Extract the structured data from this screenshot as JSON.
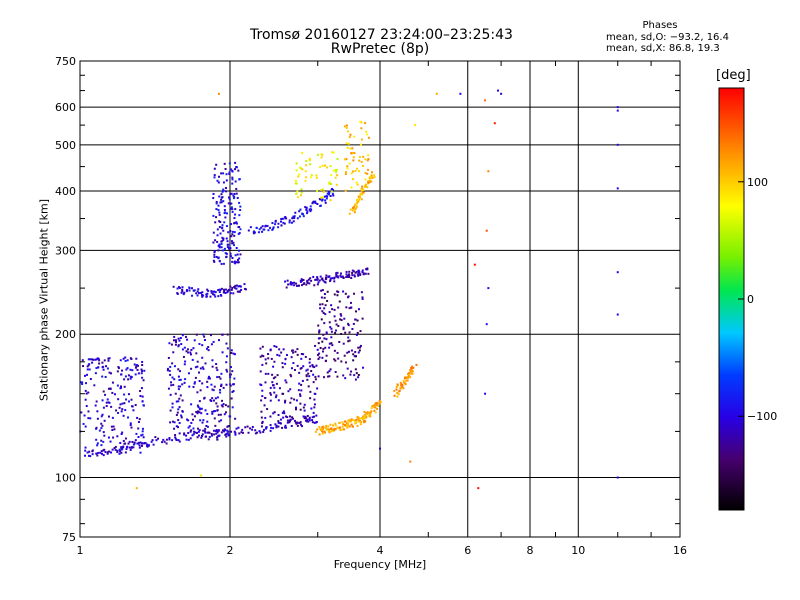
{
  "title": "Tromsø 20160127 23:24:00–23:25:43",
  "subtitle": "RwPretec (8p)",
  "phases": {
    "heading": "Phases",
    "o_stats": "mean, sd,O: −93.2, 16.4",
    "x_stats": "mean, sd,X:  86.8, 19.3"
  },
  "colorbar": {
    "unit_label": "[deg]",
    "range": [
      -180,
      180
    ],
    "ticks": [
      100,
      0,
      -100
    ],
    "tick_labels": [
      "100",
      "0",
      "−100"
    ]
  },
  "chart_data": {
    "type": "scatter",
    "xlabel": "Frequency [MHz]",
    "ylabel": "Stationary phase Virtual Height [km]",
    "x_scale": "log",
    "y_scale": "log",
    "xlim": [
      1,
      16
    ],
    "ylim": [
      75,
      750
    ],
    "grid": true,
    "xticks": [
      1,
      2,
      4,
      6,
      8,
      10,
      16
    ],
    "xtick_labels": [
      "1",
      "2",
      "4",
      "6",
      "8",
      "10",
      "16"
    ],
    "yticks": [
      75,
      100,
      200,
      300,
      400,
      500,
      600,
      750
    ],
    "ytick_labels": [
      "75",
      "100",
      "200",
      "300",
      "400",
      "500",
      "600",
      "750"
    ],
    "value_label": "phase [deg]",
    "series": [
      {
        "traces": [
          {
            "x": [
              1.02,
              1.1,
              1.2,
              1.3,
              1.4,
              1.55,
              1.7,
              1.85,
              2.0,
              2.2,
              2.4,
              2.6,
              2.8,
              3.0
            ],
            "y": [
              112,
              113,
              115,
              117,
              119,
              121,
              123,
              124,
              125,
              126,
              127,
              129,
              131,
              133
            ],
            "phase": -110
          },
          {
            "x": [
              1.55,
              1.65,
              1.75,
              1.85,
              1.95,
              2.05,
              2.15
            ],
            "y": [
              248,
              246,
              244,
              244,
              246,
              249,
              252
            ],
            "phase": -105
          },
          {
            "x": [
              2.6,
              2.75,
              2.9,
              3.05,
              3.2,
              3.35,
              3.5,
              3.65,
              3.8
            ],
            "y": [
              255,
              256,
              258,
              260,
              263,
              265,
              267,
              268,
              270
            ],
            "phase": -115
          },
          {
            "x": [
              2.2,
              2.35,
              2.5,
              2.65,
              2.8,
              2.95,
              3.1,
              3.25
            ],
            "y": [
              330,
              335,
              342,
              350,
              360,
              372,
              385,
              400
            ],
            "phase": -95
          },
          {
            "x": [
              3.0,
              3.1,
              3.2,
              3.3,
              3.4,
              3.5,
              3.6,
              3.7,
              3.8,
              3.9,
              4.0
            ],
            "y": [
              125,
              126,
              127,
              128,
              129,
              130,
              131,
              133,
              136,
              140,
              145
            ],
            "phase": 115
          },
          {
            "x": [
              3.5,
              3.6,
              3.7,
              3.8,
              3.9
            ],
            "y": [
              360,
              380,
              400,
              420,
              440
            ],
            "phase": 110
          },
          {
            "x": [
              4.3,
              4.4,
              4.5,
              4.6,
              4.7
            ],
            "y": [
              150,
              155,
              160,
              165,
              170
            ],
            "phase": 120
          }
        ]
      },
      {
        "clusters": [
          {
            "x": [
              1.0,
              1.35
            ],
            "y": [
              112,
              180
            ],
            "phase": -105,
            "n": 220
          },
          {
            "x": [
              1.5,
              2.05
            ],
            "y": [
              120,
              200
            ],
            "phase": -110,
            "n": 260
          },
          {
            "x": [
              1.85,
              2.1
            ],
            "y": [
              280,
              460
            ],
            "phase": -100,
            "n": 180
          },
          {
            "x": [
              2.3,
              3.0
            ],
            "y": [
              130,
              190
            ],
            "phase": -120,
            "n": 170
          },
          {
            "x": [
              3.0,
              3.7
            ],
            "y": [
              160,
              250
            ],
            "phase": -130,
            "n": 150
          },
          {
            "x": [
              2.7,
              3.3
            ],
            "y": [
              380,
              490
            ],
            "phase": 80,
            "n": 60
          },
          {
            "x": [
              3.4,
              3.8
            ],
            "y": [
              400,
              560
            ],
            "phase": 105,
            "n": 60
          }
        ]
      },
      {
        "points": [
          {
            "x": 1.9,
            "y": 640,
            "phase": 130
          },
          {
            "x": 1.75,
            "y": 101,
            "phase": 95
          },
          {
            "x": 1.3,
            "y": 95,
            "phase": 110
          },
          {
            "x": 5.2,
            "y": 640,
            "phase": 115
          },
          {
            "x": 5.8,
            "y": 640,
            "phase": -100
          },
          {
            "x": 6.5,
            "y": 620,
            "phase": 140
          },
          {
            "x": 6.9,
            "y": 650,
            "phase": -100
          },
          {
            "x": 7.0,
            "y": 640,
            "phase": -110
          },
          {
            "x": 6.8,
            "y": 555,
            "phase": 170
          },
          {
            "x": 6.6,
            "y": 440,
            "phase": 130
          },
          {
            "x": 6.2,
            "y": 280,
            "phase": 175
          },
          {
            "x": 6.6,
            "y": 250,
            "phase": -100
          },
          {
            "x": 6.3,
            "y": 95,
            "phase": 175
          },
          {
            "x": 6.5,
            "y": 150,
            "phase": -100
          },
          {
            "x": 12.0,
            "y": 600,
            "phase": -100
          },
          {
            "x": 12.0,
            "y": 590,
            "phase": -100
          },
          {
            "x": 12.0,
            "y": 500,
            "phase": -100
          },
          {
            "x": 12.0,
            "y": 405,
            "phase": -100
          },
          {
            "x": 12.0,
            "y": 270,
            "phase": -100
          },
          {
            "x": 12.0,
            "y": 220,
            "phase": -100
          },
          {
            "x": 12.0,
            "y": 100,
            "phase": -100
          },
          {
            "x": 4.0,
            "y": 115,
            "phase": -110
          },
          {
            "x": 4.6,
            "y": 108,
            "phase": 130
          },
          {
            "x": 4.7,
            "y": 550,
            "phase": 90
          },
          {
            "x": 6.55,
            "y": 330,
            "phase": 150
          },
          {
            "x": 6.55,
            "y": 210,
            "phase": -90
          }
        ]
      }
    ]
  }
}
